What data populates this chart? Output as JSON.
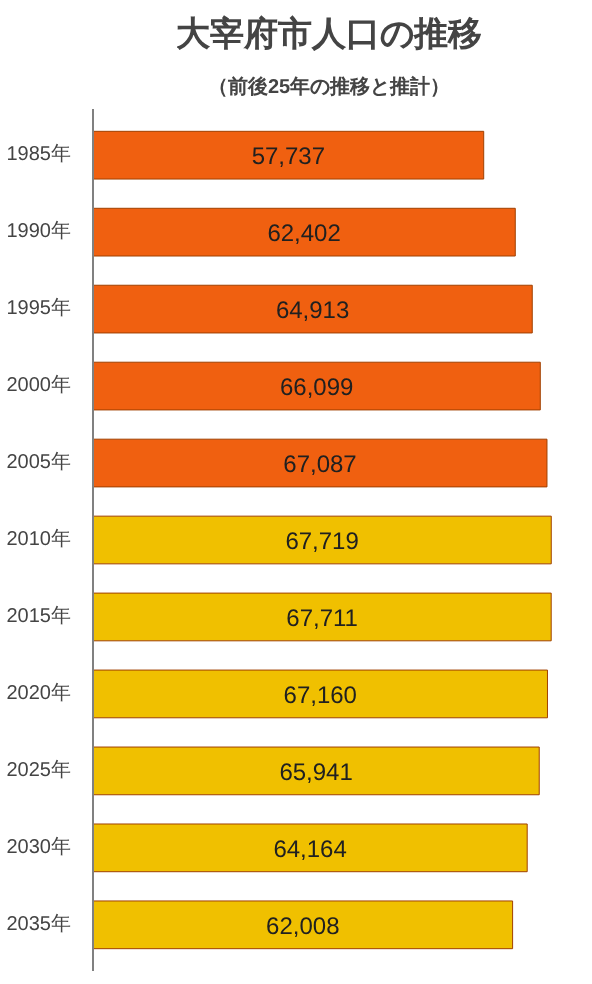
{
  "chart_data": {
    "type": "bar",
    "orientation": "horizontal",
    "title": "大宰府市人口の推移",
    "subtitle": "（前後25年の推移と推計）",
    "categories": [
      "1985年",
      "1990年",
      "1995年",
      "2000年",
      "2005年",
      "2010年",
      "2015年",
      "2020年",
      "2025年",
      "2030年",
      "2035年"
    ],
    "values": [
      57737,
      62402,
      64913,
      66099,
      67087,
      67719,
      67711,
      67160,
      65941,
      64164,
      62008
    ],
    "colors": [
      "#f06010",
      "#f06010",
      "#f06010",
      "#f06010",
      "#f06010",
      "#f0c000",
      "#f0c000",
      "#f0c000",
      "#f0c000",
      "#f0c000",
      "#f0c000"
    ],
    "value_labels": [
      "57,737",
      "62,402",
      "64,913",
      "66,099",
      "67,087",
      "67,719",
      "67,711",
      "67,160",
      "65,941",
      "64,164",
      "62,008"
    ]
  }
}
